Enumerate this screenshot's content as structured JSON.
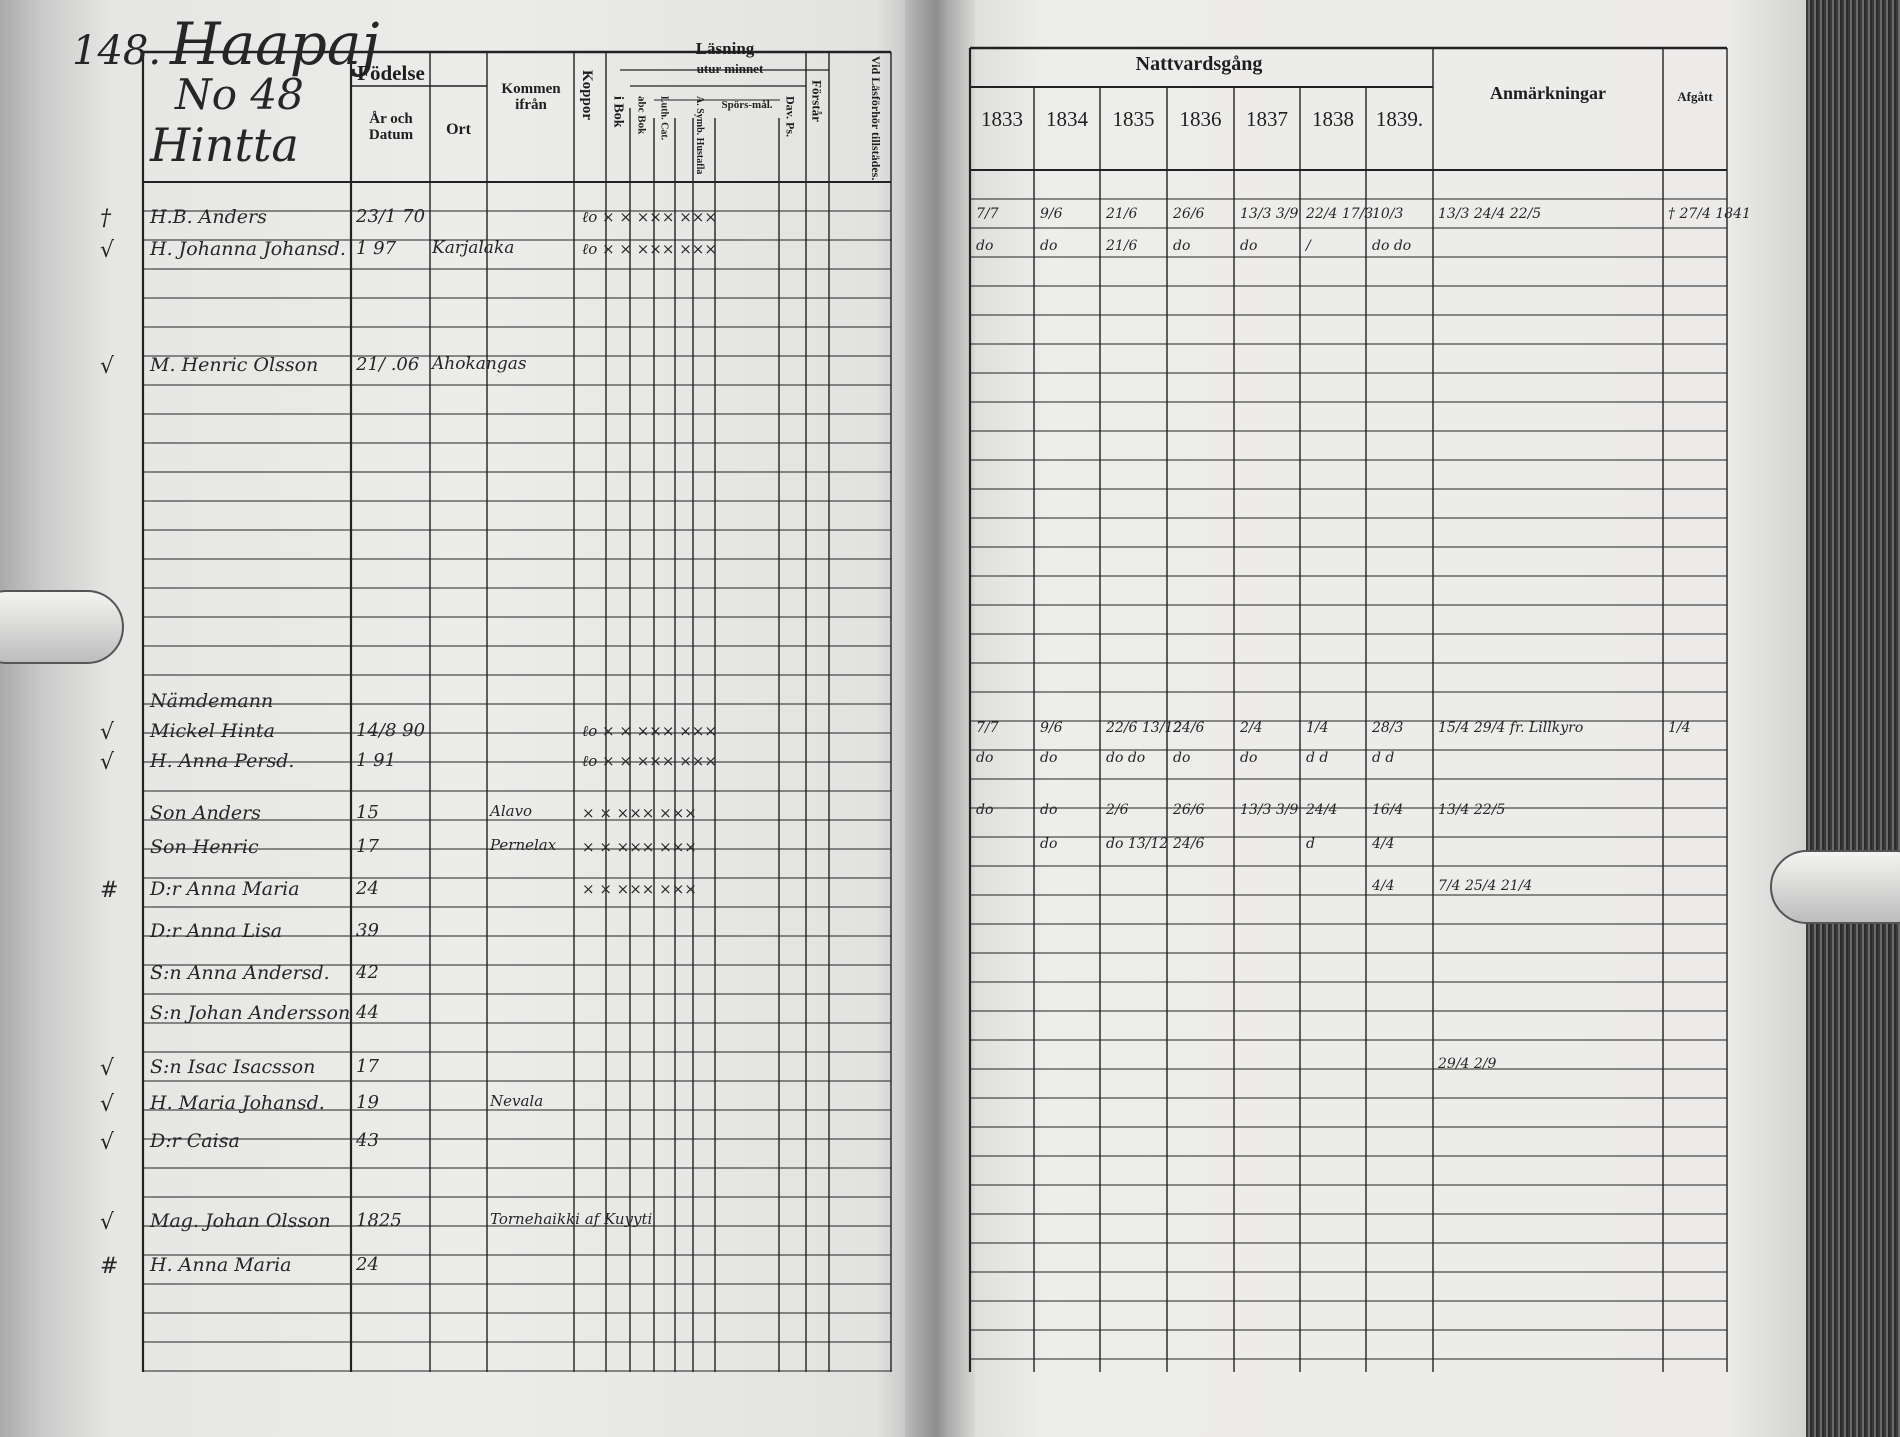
{
  "left_page": {
    "page_number": "148.",
    "parish": "Haapaj",
    "house_number": "No 48",
    "farm_name": "Hintta",
    "headers": {
      "fodelse": "Födelse",
      "ar_och_datum": "År och Datum",
      "ort": "Ort",
      "kommen_ifran": "Kommen ifrån",
      "koppor": "Koppor",
      "lasning": "Läsning",
      "i_bok": "i Bok",
      "utar_minnet": "utur minnet",
      "abc_bok": "abc Bok",
      "luth_cat": "Luth. Cat.",
      "a_symb": "A. Symb. Hustafla",
      "sporsmal": "Spörs-mål.",
      "dav_ps": "Dav. Ps.",
      "forstar": "Förstår",
      "vid_lasforhor": "Vid Läsförhör tillstädes."
    },
    "entries": [
      {
        "mark": "†",
        "name": "H.B. Anders",
        "date": "23/1 70",
        "ort": "",
        "kommen": "",
        "reading": "ℓo × × ××× ×××"
      },
      {
        "mark": "√",
        "name": "H. Johanna Johansd.",
        "date": "1 97",
        "ort": "Karjalaka",
        "kommen": "",
        "reading": "ℓo × × ××× ×××"
      },
      {
        "mark": "√",
        "name": "M. Henric Olsson",
        "date": "21/ .06",
        "ort": "Ahokangas",
        "kommen": "",
        "reading": ""
      },
      {
        "mark": "",
        "name": "Nämdemann",
        "date": "",
        "ort": "",
        "kommen": "",
        "reading": ""
      },
      {
        "mark": "√",
        "name": "Mickel Hinta",
        "date": "14/8 90",
        "ort": "",
        "kommen": "",
        "reading": "ℓo × × ××× ×××"
      },
      {
        "mark": "√",
        "name": "H. Anna Persd.",
        "date": "1 91",
        "ort": "",
        "kommen": "",
        "reading": "ℓo × × ××× ×××"
      },
      {
        "mark": "",
        "name": "Son Anders",
        "date": "15",
        "ort": "",
        "kommen": "Alavo",
        "reading": "× × ××× ×××"
      },
      {
        "mark": "",
        "name": "Son Henric",
        "date": "17",
        "ort": "",
        "kommen": "Pernelax",
        "reading": "× × ××× ×××"
      },
      {
        "mark": "#",
        "name": "D:r Anna Maria",
        "date": "24",
        "ort": "",
        "kommen": "",
        "reading": "× × ××× ×××"
      },
      {
        "mark": "",
        "name": "D:r Anna Lisa",
        "date": "39",
        "ort": "",
        "kommen": "",
        "reading": ""
      },
      {
        "mark": "",
        "name": "S:n Anna Andersd.",
        "date": "42",
        "ort": "",
        "kommen": "",
        "reading": ""
      },
      {
        "mark": "",
        "name": "S:n Johan Andersson",
        "date": "44",
        "ort": "",
        "kommen": "",
        "reading": ""
      },
      {
        "mark": "√",
        "name": "S:n Isac Isacsson",
        "date": "17",
        "ort": "",
        "kommen": "",
        "reading": ""
      },
      {
        "mark": "√",
        "name": "H. Maria Johansd.",
        "date": "19",
        "ort": "",
        "kommen": "Nevala",
        "reading": ""
      },
      {
        "mark": "√",
        "name": "D:r Caisa",
        "date": "43",
        "ort": "",
        "kommen": "",
        "reading": ""
      },
      {
        "mark": "√",
        "name": "Mag. Johan Olsson",
        "date": "1825",
        "ort": "",
        "kommen": "Tornehaikki af Kuyyti",
        "reading": ""
      },
      {
        "mark": "#",
        "name": "H. Anna Maria",
        "date": "24",
        "ort": "",
        "kommen": "",
        "reading": ""
      }
    ]
  },
  "right_page": {
    "headers": {
      "nattvardsgang": "Nattvardsgång",
      "years": [
        "1833",
        "1834",
        "1835",
        "1836",
        "1837",
        "1838",
        "1839."
      ],
      "anmarkningar": "Anmärkningar",
      "afgatt": "Afgått"
    },
    "communion_rows": [
      {
        "marks": [
          "7/7",
          "9/6",
          "21/6",
          "26/6",
          "13/3 3/9",
          "22/4 17/3",
          "10/3"
        ],
        "notes": "13/3 24/4 22/5",
        "afgatt": "† 27/4 1841"
      },
      {
        "marks": [
          "do",
          "do",
          "21/6",
          "do",
          "do",
          "/",
          "do do"
        ],
        "notes": "",
        "afgatt": ""
      },
      {
        "marks": [
          "7/7",
          "9/6",
          "22/6 13/12",
          "24/6",
          "2/4",
          "1/4",
          "28/3"
        ],
        "notes": "15/4 29/4 fr. Lillkyro",
        "afgatt": "1/4"
      },
      {
        "marks": [
          "do",
          "do",
          "do do",
          "do",
          "do",
          "d d",
          "d d"
        ],
        "notes": "",
        "afgatt": ""
      },
      {
        "marks": [
          "do",
          "do",
          "2/6",
          "26/6",
          "13/3 3/9",
          "24/4",
          "16/4"
        ],
        "notes": "13/4 22/5",
        "afgatt": ""
      },
      {
        "marks": [
          "",
          "do",
          "do 13/12",
          "24/6",
          "",
          "d",
          "4/4"
        ],
        "notes": "",
        "afgatt": ""
      },
      {
        "marks": [
          "",
          "",
          "",
          "",
          "",
          "",
          "4/4"
        ],
        "notes": "7/4 25/4 21/4",
        "afgatt": ""
      },
      {
        "marks": [
          "",
          "",
          "",
          "",
          "",
          "",
          ""
        ],
        "notes": "29/4 2/9",
        "afgatt": ""
      }
    ]
  },
  "colors": {
    "paper": "#ecebea",
    "ink": "#262626",
    "book_edge": "#3a3a3a"
  }
}
